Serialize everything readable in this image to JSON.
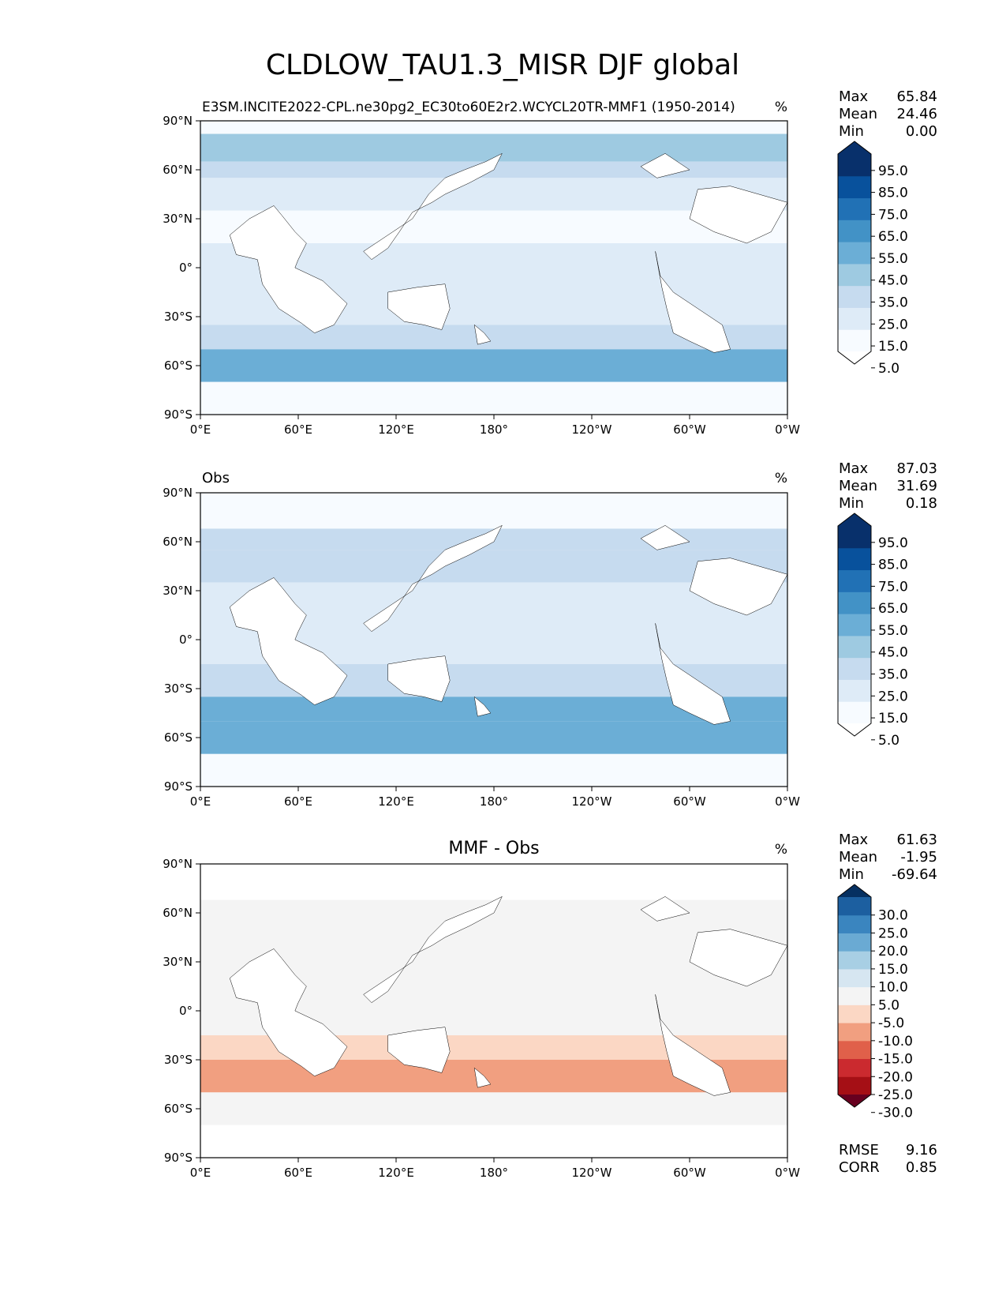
{
  "figure_title": "CLDLOW_TAU1.3_MISR DJF global",
  "colors": {
    "seq": [
      "#ffffff",
      "#f7fbff",
      "#deebf7",
      "#c6dbef",
      "#9ecae1",
      "#6baed6",
      "#4292c6",
      "#2171b5",
      "#08519c",
      "#08306b"
    ],
    "seq_under": "#ffffff",
    "seq_over": "#08306b",
    "div": [
      "#67001f",
      "#a50f15",
      "#cb2a2f",
      "#e0604a",
      "#f19f80",
      "#fbd7c4",
      "#f4f4f4",
      "#d6e6f1",
      "#a8cfe4",
      "#6aaad3",
      "#3a85bf",
      "#1c5fa0",
      "#053061"
    ],
    "land_outline": "#000000"
  },
  "chart_data": [
    {
      "type": "heatmap",
      "panel": "test",
      "title": "",
      "left_label": "E3SM.INCITE2022-CPL.ne30pg2_EC30to60E2r2.WCYCL20TR-MMF1 (1950-2014)",
      "right_label": "%",
      "stats": [
        {
          "label": "Max",
          "value": "65.84"
        },
        {
          "label": "Mean",
          "value": "24.46"
        },
        {
          "label": "Min",
          "value": "0.00"
        }
      ],
      "colorbar": {
        "levels": [
          0,
          5,
          10,
          15,
          20,
          25,
          30,
          35,
          40,
          45,
          50,
          55,
          60,
          65,
          70,
          75,
          80,
          85,
          90,
          95,
          100
        ],
        "tick_labels": [
          "95.0",
          "85.0",
          "75.0",
          "65.0",
          "55.0",
          "45.0",
          "35.0",
          "25.0",
          "15.0",
          "5.0"
        ],
        "extend": "both"
      },
      "x_ticks": [
        "0°E",
        "60°E",
        "120°E",
        "180°",
        "120°W",
        "60°W",
        "0°W"
      ],
      "y_ticks": [
        "90°N",
        "60°N",
        "30°N",
        "0°",
        "30°S",
        "60°S",
        "90°S"
      ],
      "xlim": [
        0,
        360
      ],
      "ylim": [
        -90,
        90
      ],
      "field": [
        {
          "lat": [
            65,
            82
          ],
          "value": 45
        },
        {
          "lat": [
            55,
            65
          ],
          "value": 30
        },
        {
          "lat": [
            35,
            55
          ],
          "value": 25
        },
        {
          "lat": [
            15,
            35
          ],
          "value": 18
        },
        {
          "lat": [
            -15,
            15
          ],
          "value": 20
        },
        {
          "lat": [
            -35,
            -15
          ],
          "value": 25
        },
        {
          "lat": [
            -50,
            -35
          ],
          "value": 38
        },
        {
          "lat": [
            -70,
            -50
          ],
          "value": 55
        },
        {
          "lat": [
            -80,
            -70
          ],
          "value": 10
        }
      ]
    },
    {
      "type": "heatmap",
      "panel": "reference",
      "title": "",
      "left_label": "Obs",
      "right_label": "%",
      "stats": [
        {
          "label": "Max",
          "value": "87.03"
        },
        {
          "label": "Mean",
          "value": "31.69"
        },
        {
          "label": "Min",
          "value": "0.18"
        }
      ],
      "colorbar": {
        "levels": [
          0,
          5,
          10,
          15,
          20,
          25,
          30,
          35,
          40,
          45,
          50,
          55,
          60,
          65,
          70,
          75,
          80,
          85,
          90,
          95,
          100
        ],
        "tick_labels": [
          "95.0",
          "85.0",
          "75.0",
          "65.0",
          "55.0",
          "45.0",
          "35.0",
          "25.0",
          "15.0",
          "5.0"
        ],
        "extend": "both"
      },
      "x_ticks": [
        "0°E",
        "60°E",
        "120°E",
        "180°",
        "120°W",
        "60°W",
        "0°W"
      ],
      "y_ticks": [
        "90°N",
        "60°N",
        "30°N",
        "0°",
        "30°S",
        "60°S",
        "90°S"
      ],
      "xlim": [
        0,
        360
      ],
      "ylim": [
        -90,
        90
      ],
      "field": [
        {
          "lat": [
            55,
            68
          ],
          "value": 38
        },
        {
          "lat": [
            35,
            55
          ],
          "value": 30
        },
        {
          "lat": [
            15,
            35
          ],
          "value": 25
        },
        {
          "lat": [
            -15,
            15
          ],
          "value": 20
        },
        {
          "lat": [
            -35,
            -15
          ],
          "value": 30
        },
        {
          "lat": [
            -50,
            -35
          ],
          "value": 50
        },
        {
          "lat": [
            -70,
            -50
          ],
          "value": 58
        }
      ]
    },
    {
      "type": "heatmap",
      "panel": "difference",
      "title": "MMF - Obs",
      "left_label": "",
      "right_label": "%",
      "stats": [
        {
          "label": "Max",
          "value": "61.63"
        },
        {
          "label": "Mean",
          "value": "-1.95"
        },
        {
          "label": "Min",
          "value": "-69.64"
        }
      ],
      "colorbar": {
        "levels": [
          -35,
          -30,
          -25,
          -20,
          -15,
          -10,
          -5,
          5,
          10,
          15,
          20,
          25,
          30,
          35
        ],
        "tick_labels": [
          "30.0",
          "25.0",
          "20.0",
          "15.0",
          "10.0",
          "5.0",
          "-5.0",
          "-10.0",
          "-15.0",
          "-20.0",
          "-25.0",
          "-30.0"
        ],
        "extend": "both"
      },
      "x_ticks": [
        "0°E",
        "60°E",
        "120°E",
        "180°",
        "120°W",
        "60°W",
        "0°W"
      ],
      "y_ticks": [
        "90°N",
        "60°N",
        "30°N",
        "0°",
        "30°S",
        "60°S",
        "90°S"
      ],
      "xlim": [
        0,
        360
      ],
      "ylim": [
        -90,
        90
      ],
      "field": [
        {
          "lat": [
            55,
            68
          ],
          "value": 3
        },
        {
          "lat": [
            15,
            55
          ],
          "value": 0
        },
        {
          "lat": [
            -15,
            15
          ],
          "value": 2
        },
        {
          "lat": [
            -30,
            -15
          ],
          "value": -6
        },
        {
          "lat": [
            -50,
            -30
          ],
          "value": -12
        },
        {
          "lat": [
            -70,
            -50
          ],
          "value": -4
        }
      ],
      "summary": [
        {
          "label": "RMSE",
          "value": "9.16"
        },
        {
          "label": "CORR",
          "value": "0.85"
        }
      ]
    }
  ]
}
